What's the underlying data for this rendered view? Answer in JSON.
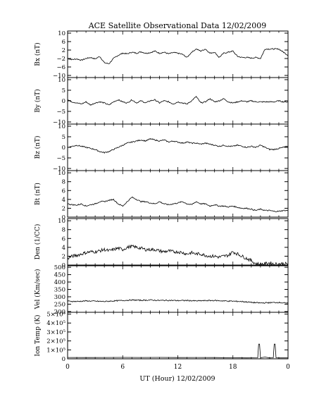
{
  "title": "ACE Satellite Observational Data   12/02/2009",
  "xlabel": "UT (Hour)   12/02/2009",
  "x_ticks": [
    "0",
    "6",
    "12",
    "18",
    "0"
  ],
  "chart_data": [
    {
      "type": "line",
      "ylabel": "Bx (nT)",
      "ylim": [
        -11,
        11
      ],
      "y_ticks": [
        {
          "v": 10,
          "t": "10"
        },
        {
          "v": 6,
          "t": "6"
        },
        {
          "v": 2,
          "t": "2"
        },
        {
          "v": -2,
          "t": "−2"
        },
        {
          "v": -6,
          "t": "−6"
        },
        {
          "v": -10,
          "t": "−10"
        }
      ],
      "x": [
        0,
        0.5,
        1,
        1.5,
        2,
        2.5,
        3,
        3.5,
        4,
        4.5,
        5,
        5.5,
        6,
        6.5,
        7,
        7.5,
        8,
        8.5,
        9,
        9.5,
        10,
        10.5,
        11,
        11.5,
        12,
        12.5,
        13,
        13.5,
        14,
        14.5,
        15,
        15.5,
        16,
        16.5,
        17,
        17.5,
        18,
        18.5,
        19,
        19.5,
        20,
        20.5,
        21,
        21.5,
        22,
        22.5,
        23,
        23.5,
        24
      ],
      "values": [
        -2,
        -2.5,
        -2.2,
        -2.8,
        -2,
        -1.5,
        -2.2,
        -1,
        -4,
        -4.5,
        -2,
        -0.5,
        0.5,
        0.2,
        1,
        0.5,
        1.2,
        0.5,
        0.8,
        1.5,
        0.5,
        1,
        0.2,
        0.8,
        0.5,
        0,
        -1.5,
        1,
        2.5,
        1.5,
        2.5,
        0.5,
        1,
        -1.5,
        0.5,
        1,
        1.5,
        -1,
        -1.5,
        -1.5,
        -1.8,
        -1.5,
        -2,
        2.5,
        2.5,
        2.5,
        2.5,
        1,
        -0.5
      ]
    },
    {
      "type": "line",
      "ylabel": "By (nT)",
      "ylim": [
        -11,
        11
      ],
      "y_ticks": [
        {
          "v": 10,
          "t": "10"
        },
        {
          "v": 5,
          "t": "5"
        },
        {
          "v": 0,
          "t": "0"
        },
        {
          "v": -5,
          "t": "−5"
        },
        {
          "v": -10,
          "t": "−10"
        }
      ],
      "x": [
        0,
        0.5,
        1,
        1.5,
        2,
        2.5,
        3,
        3.5,
        4,
        4.5,
        5,
        5.5,
        6,
        6.5,
        7,
        7.5,
        8,
        8.5,
        9,
        9.5,
        10,
        10.5,
        11,
        11.5,
        12,
        12.5,
        13,
        13.5,
        14,
        14.5,
        15,
        15.5,
        16,
        16.5,
        17,
        17.5,
        18,
        18.5,
        19,
        19.5,
        20,
        20.5,
        21,
        21.5,
        22,
        22.5,
        23,
        23.5,
        24
      ],
      "values": [
        0.5,
        -0.5,
        -1,
        -1.5,
        -0.5,
        -2,
        -1,
        -0.5,
        -1,
        -2,
        -0.5,
        0.5,
        -0.5,
        -1,
        0.5,
        -1,
        0,
        -1,
        0,
        0.5,
        -1,
        0,
        -0.5,
        -1.5,
        -0.5,
        -1,
        -1.5,
        0,
        2,
        -1,
        -0.5,
        1,
        -0.5,
        0,
        1,
        -0.5,
        -1,
        -0.5,
        0,
        -0.5,
        0,
        -0.5,
        -0.5,
        -0.5,
        -0.5,
        -0.5,
        0,
        -0.5,
        -0.5
      ]
    },
    {
      "type": "line",
      "ylabel": "Bz (nT)",
      "ylim": [
        -11,
        11
      ],
      "y_ticks": [
        {
          "v": 10,
          "t": "10"
        },
        {
          "v": 5,
          "t": "5"
        },
        {
          "v": 0,
          "t": "0"
        },
        {
          "v": -5,
          "t": "−5"
        },
        {
          "v": -10,
          "t": "−10"
        }
      ],
      "x": [
        0,
        0.5,
        1,
        1.5,
        2,
        2.5,
        3,
        3.5,
        4,
        4.5,
        5,
        5.5,
        6,
        6.5,
        7,
        7.5,
        8,
        8.5,
        9,
        9.5,
        10,
        10.5,
        11,
        11.5,
        12,
        12.5,
        13,
        13.5,
        14,
        14.5,
        15,
        15.5,
        16,
        16.5,
        17,
        17.5,
        18,
        18.5,
        19,
        19.5,
        20,
        20.5,
        21,
        21.5,
        22,
        22.5,
        23,
        23.5,
        24
      ],
      "values": [
        0,
        0.5,
        1,
        0.5,
        0,
        -0.5,
        -1,
        -2,
        -2.5,
        -2,
        -1,
        0,
        1,
        2,
        2.5,
        3,
        3.5,
        3,
        4,
        3.5,
        3,
        3.5,
        2.5,
        3,
        2.5,
        2,
        2.5,
        2,
        2,
        1.5,
        2,
        1.5,
        1,
        0.5,
        1,
        0.5,
        0.5,
        1,
        0.5,
        0,
        0.5,
        0,
        1,
        0,
        -1,
        -1,
        -0.5,
        0,
        0.5
      ]
    },
    {
      "type": "line",
      "ylabel": "Bt (nT)",
      "ylim": [
        0,
        10.5
      ],
      "y_ticks": [
        {
          "v": 10,
          "t": "10"
        },
        {
          "v": 8,
          "t": "8"
        },
        {
          "v": 6,
          "t": "6"
        },
        {
          "v": 4,
          "t": "4"
        },
        {
          "v": 2,
          "t": "2"
        },
        {
          "v": 0,
          "t": "0"
        }
      ],
      "x": [
        0,
        0.5,
        1,
        1.5,
        2,
        2.5,
        3,
        3.5,
        4,
        4.5,
        5,
        5.5,
        6,
        6.5,
        7,
        7.5,
        8,
        8.5,
        9,
        9.5,
        10,
        10.5,
        11,
        11.5,
        12,
        12.5,
        13,
        13.5,
        14,
        14.5,
        15,
        15.5,
        16,
        16.5,
        17,
        17.5,
        18,
        18.5,
        19,
        19.5,
        20,
        20.5,
        21,
        21.5,
        22,
        22.5,
        23,
        23.5,
        24
      ],
      "values": [
        3,
        2.8,
        2.7,
        3,
        2.5,
        2.8,
        3,
        3.5,
        3.5,
        3.8,
        4,
        3,
        2.5,
        3.5,
        4.5,
        4,
        3.5,
        3.5,
        3.2,
        3,
        3.5,
        3,
        2.8,
        3,
        3.2,
        3.5,
        3,
        2.8,
        3.5,
        3,
        3,
        2.5,
        2.8,
        2.5,
        2.5,
        2.3,
        2.5,
        2.2,
        2,
        2,
        1.8,
        1.5,
        1.8,
        1.5,
        1.5,
        1.3,
        1.3,
        1.5,
        1.5
      ]
    },
    {
      "type": "line",
      "ylabel": "Den (1/CC)",
      "ylim": [
        0,
        10.5
      ],
      "y_ticks": [
        {
          "v": 10,
          "t": "10"
        },
        {
          "v": 8,
          "t": "8"
        },
        {
          "v": 6,
          "t": "6"
        },
        {
          "v": 4,
          "t": "4"
        },
        {
          "v": 2,
          "t": "2"
        },
        {
          "v": 0,
          "t": "0"
        }
      ],
      "x": [
        0,
        0.5,
        1,
        1.5,
        2,
        2.5,
        3,
        3.5,
        4,
        4.5,
        5,
        5.5,
        6,
        6.5,
        7,
        7.5,
        8,
        8.5,
        9,
        9.5,
        10,
        10.5,
        11,
        11.5,
        12,
        12.5,
        13,
        13.5,
        14,
        14.5,
        15,
        15.5,
        16,
        16.5,
        17,
        17.5,
        18,
        18.5,
        19,
        19.5,
        20,
        20.5,
        21,
        21.5,
        22,
        22.5,
        23,
        23.5,
        24
      ],
      "values": [
        1.5,
        2,
        2.2,
        2.5,
        2.8,
        3,
        3,
        3.2,
        3.5,
        3.2,
        3.5,
        3.8,
        3.5,
        4,
        4.2,
        4,
        3.8,
        3.5,
        3.5,
        3.5,
        3.2,
        3,
        3.2,
        3,
        3,
        2.8,
        2.5,
        2.8,
        2.5,
        2.5,
        2.2,
        2,
        2,
        1.8,
        2,
        2.2,
        3,
        2.5,
        2,
        1.5,
        1,
        0.3,
        0.2,
        0.3,
        0.5,
        0.2,
        0.3,
        0.3,
        0.2
      ]
    },
    {
      "type": "line",
      "ylabel": "Vel (Km/sec)",
      "ylim": [
        195,
        510
      ],
      "y_ticks": [
        {
          "v": 500,
          "t": "500"
        },
        {
          "v": 450,
          "t": "450"
        },
        {
          "v": 400,
          "t": "400"
        },
        {
          "v": 350,
          "t": "350"
        },
        {
          "v": 300,
          "t": "300"
        },
        {
          "v": 250,
          "t": "250"
        },
        {
          "v": 200,
          "t": "200"
        }
      ],
      "x": [
        0,
        1,
        2,
        3,
        4,
        5,
        6,
        7,
        8,
        9,
        10,
        11,
        12,
        13,
        14,
        15,
        16,
        17,
        18,
        19,
        20,
        21,
        22,
        23,
        24
      ],
      "values": [
        270,
        268,
        272,
        270,
        268,
        272,
        275,
        278,
        276,
        278,
        275,
        276,
        274,
        275,
        272,
        274,
        275,
        272,
        270,
        268,
        262,
        258,
        260,
        262,
        255
      ]
    },
    {
      "type": "line",
      "ylabel": "Ion Temp (K)",
      "ylim": [
        0,
        520000
      ],
      "y_ticks": [
        {
          "v": 500000,
          "t": "5×10⁵"
        },
        {
          "v": 400000,
          "t": "4×10⁵"
        },
        {
          "v": 300000,
          "t": "3×10⁵"
        },
        {
          "v": 200000,
          "t": "2×10⁵"
        },
        {
          "v": 100000,
          "t": "1×10⁵"
        },
        {
          "v": 0,
          "t": "0"
        }
      ],
      "x": [
        0,
        2,
        4,
        6,
        8,
        10,
        12,
        14,
        16,
        18,
        19.5,
        20.7,
        20.8,
        20.9,
        21,
        21.5,
        22,
        22.4,
        22.5,
        22.6,
        22.7,
        23,
        24
      ],
      "values": [
        15000,
        14000,
        15000,
        16000,
        15000,
        16000,
        14000,
        15000,
        14000,
        12000,
        10000,
        12000,
        165000,
        165000,
        12000,
        20000,
        10000,
        12000,
        165000,
        165000,
        12000,
        10000,
        10000
      ]
    }
  ]
}
